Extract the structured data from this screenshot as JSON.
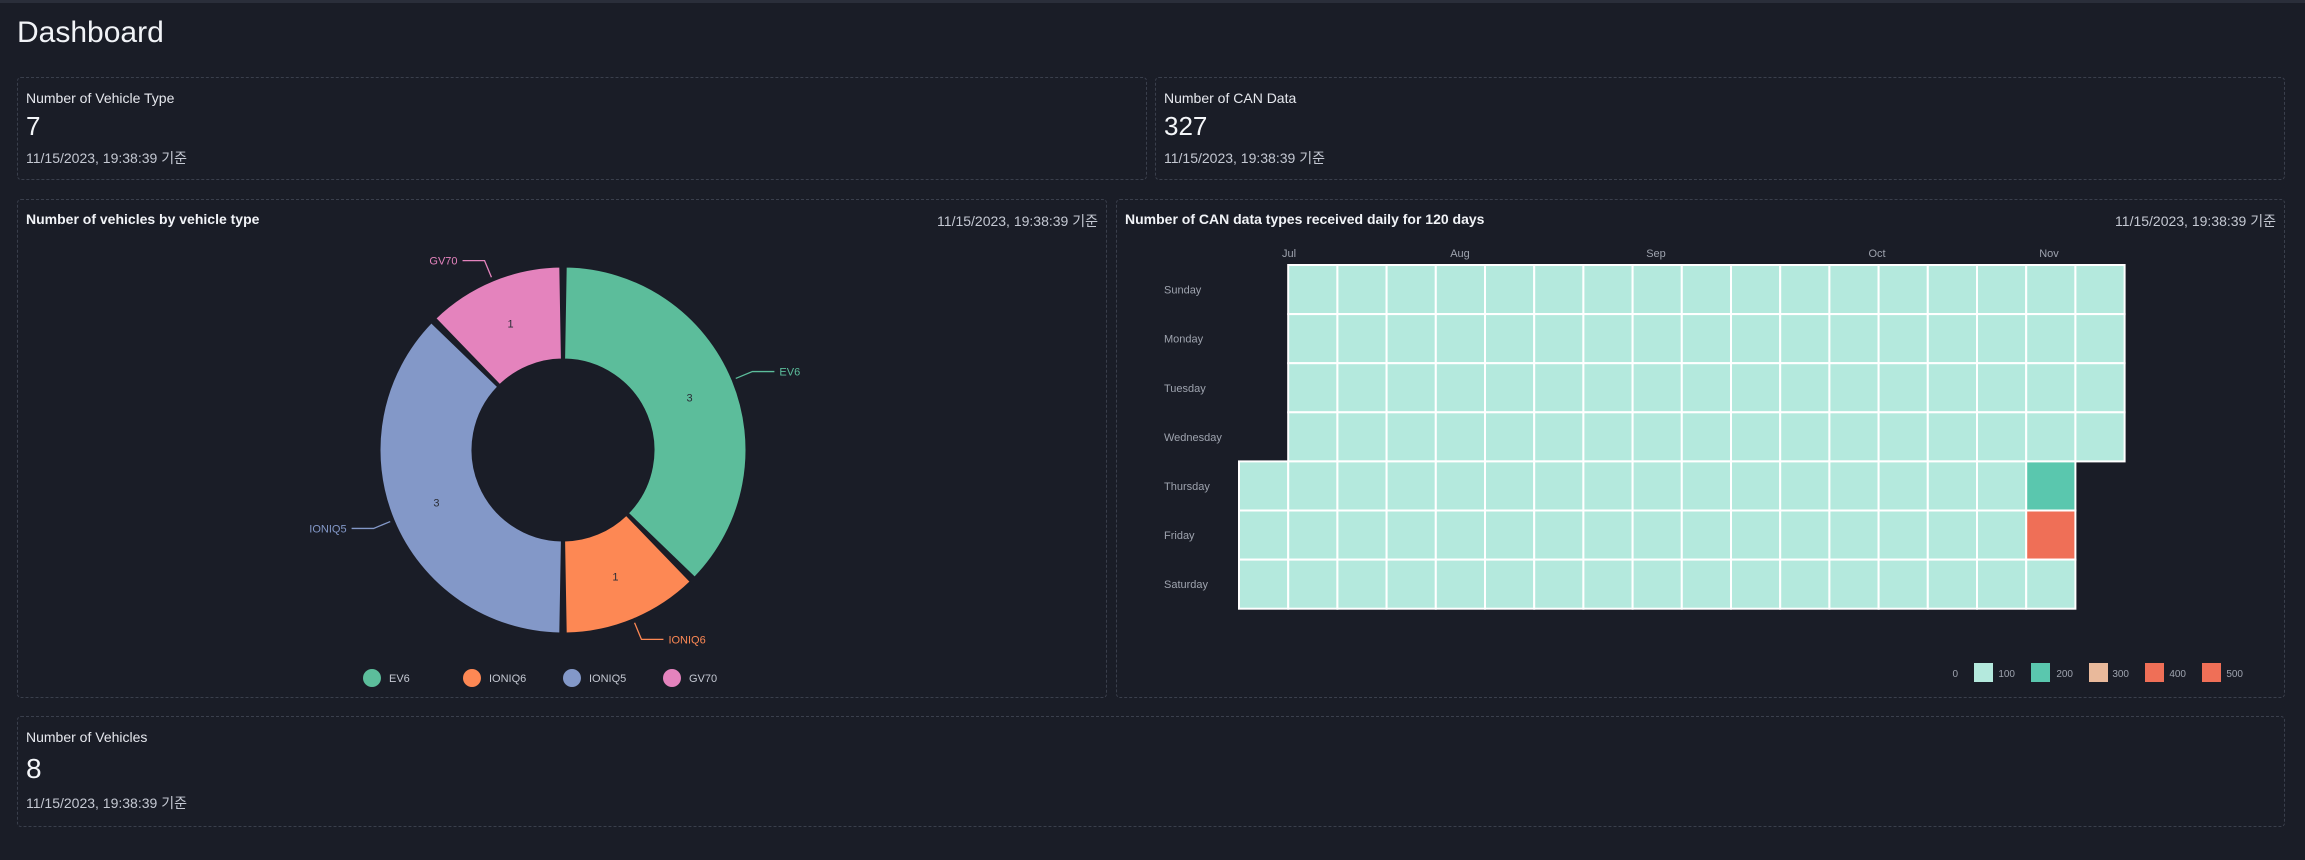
{
  "page": {
    "title": "Dashboard"
  },
  "cards": {
    "vehicle_type": {
      "label": "Number of Vehicle Type",
      "value": "7",
      "timestamp": "11/15/2023, 19:38:39 기준"
    },
    "can_data": {
      "label": "Number of CAN Data",
      "value": "327",
      "timestamp": "11/15/2023, 19:38:39 기준"
    },
    "vehicles": {
      "label": "Number of Vehicles",
      "value": "8",
      "timestamp": "11/15/2023, 19:38:39 기준"
    }
  },
  "donut_panel": {
    "title": "Number of vehicles by vehicle type",
    "timestamp": "11/15/2023, 19:38:39 기준"
  },
  "heatmap_panel": {
    "title": "Number of CAN data types received daily for 120 days",
    "timestamp": "11/15/2023, 19:38:39 기준"
  },
  "colors": {
    "EV6": "#5cbd9b",
    "IONIQ6": "#fd8854",
    "IONIQ5": "#8398c8",
    "GV70": "#e483bd",
    "heat_0": "#b4e9dd",
    "heat_100": "#b4e9dd",
    "heat_200": "#5ac7ae",
    "heat_300": "#e9b99b",
    "heat_400": "#ef6f57",
    "heat_500": "#ef6f57"
  },
  "chart_data": [
    {
      "type": "pie",
      "variant": "donut",
      "categories": [
        "EV6",
        "IONIQ6",
        "IONIQ5",
        "GV70"
      ],
      "values": [
        3,
        1,
        3,
        1
      ],
      "legend": [
        "EV6",
        "IONIQ6",
        "IONIQ5",
        "GV70"
      ],
      "legend_position": "bottom"
    },
    {
      "type": "heatmap",
      "rows": [
        "Sunday",
        "Monday",
        "Tuesday",
        "Wednesday",
        "Thursday",
        "Friday",
        "Saturday"
      ],
      "month_labels": [
        "Jul",
        "Aug",
        "Sep",
        "Oct",
        "Nov"
      ],
      "legend": [
        "0",
        "100",
        "200",
        "300",
        "400",
        "500"
      ],
      "highlights": [
        {
          "day": "Thursday",
          "week": 16,
          "bucket": "200"
        },
        {
          "day": "Friday",
          "week": 16,
          "bucket": "500"
        }
      ]
    }
  ]
}
